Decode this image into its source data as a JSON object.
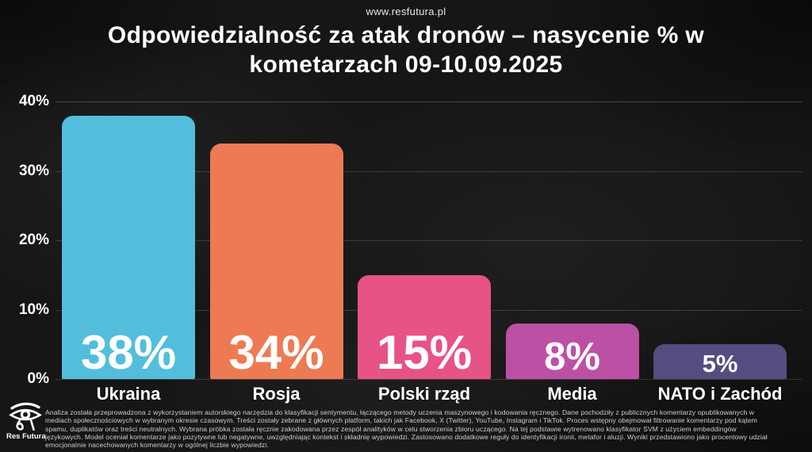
{
  "header": {
    "url": "www.resfutura.pl",
    "title_line1": "Odpowiedzialność za atak dronów – nasycenie % w",
    "title_line2": "kometarzach 09-10.09.2025"
  },
  "chart_data": {
    "type": "bar",
    "title": "Odpowiedzialność za atak dronów – nasycenie % w kometarzach 09-10.09.2025",
    "categories": [
      "Ukraina",
      "Rosja",
      "Polski rząd",
      "Media",
      "NATO i Zachód"
    ],
    "values": [
      38,
      34,
      15,
      8,
      5
    ],
    "value_labels": [
      "38%",
      "34%",
      "15%",
      "8%",
      "5%"
    ],
    "bar_colors": [
      "#53BEDC",
      "#EE7A54",
      "#E75287",
      "#BC50A5",
      "#564C80"
    ],
    "xlabel": "",
    "ylabel": "",
    "ylim": [
      0,
      40
    ],
    "yticks": [
      0,
      10,
      20,
      30,
      40
    ],
    "ytick_labels": [
      "0%",
      "10%",
      "20%",
      "30%",
      "40%"
    ],
    "grid": "horizontal faint lines at each 10%",
    "legend": "none",
    "value_label_position": "inside bottom of bar"
  },
  "footer": {
    "methodology": "Analiza została przeprowadzona z wykorzystaniem autorskiego narzędzia do klasyfikacji sentymentu, łączącego metody uczenia maszynowego i kodowania ręcznego. Dane pochodziły z publicznych komentarzy opublikowanych w mediach społecznościowych w wybranym okresie czasowym. Treści zostały zebrane z głównych platform, takich jak Facebook, X (Twitter), YouTube, Instagram i TikTok. Proces wstępny obejmował filtrowanie komentarzy pod kątem spamu, duplikatów oraz treści neutralnych. Wybrana próbka została ręcznie zakodowana przez zespół analityków w celu stworzenia zbioru uczącego. Na tej podstawie wytrenowano klasyfikator SVM z użyciem embeddingów językowych. Model oceniał komentarze jako pozytywne lub negatywne, uwzględniając kontekst i składnię wypowiedzi. Zastosowano dodatkowe reguły do identyfikacji ironii, metafor i aluzji. Wyniki przedstawiono jako procentowy udział emocjonalnie nacechowanych komentarzy w ogólnej liczbie wypowiedzi.",
    "logo_text": "Res Futura",
    "logo_icon": "eye-of-horus-icon"
  },
  "colors": {
    "background": "#161616",
    "text": "#ffffff",
    "muted_text": "#cfcfcf",
    "gridline": "rgba(255,255,255,0.15)"
  }
}
